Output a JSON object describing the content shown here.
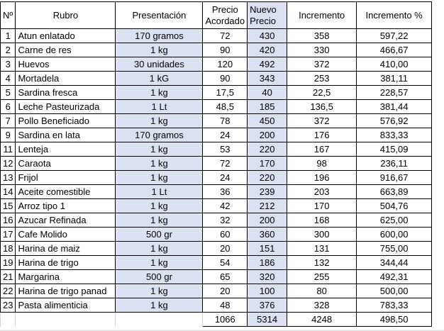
{
  "headers": {
    "num": "Nº",
    "rubro": "Rubro",
    "presentacion": "Presentación",
    "precio_acordado": "Precio Acordado",
    "nuevo_precio": "Nuevo Precio",
    "incremento": "Incremento",
    "incremento_pct": "Incremento %"
  },
  "rows": [
    {
      "num": "1",
      "rubro": "Atun enlatado",
      "presentacion": "170 gramos",
      "precio": "72",
      "nuevo": "430",
      "incremento": "358",
      "pct": "597,22"
    },
    {
      "num": "2",
      "rubro": "Carne de res",
      "presentacion": "1 kg",
      "precio": "90",
      "nuevo": "420",
      "incremento": "330",
      "pct": "466,67"
    },
    {
      "num": "3",
      "rubro": "Huevos",
      "presentacion": "30 unidades",
      "precio": "120",
      "nuevo": "492",
      "incremento": "372",
      "pct": "410,00"
    },
    {
      "num": "4",
      "rubro": "Mortadela",
      "presentacion": "1 kG",
      "precio": "90",
      "nuevo": "343",
      "incremento": "253",
      "pct": "381,11"
    },
    {
      "num": "5",
      "rubro": "Sardina fresca",
      "presentacion": "1 kg",
      "precio": "17,5",
      "nuevo": "40",
      "incremento": "22,5",
      "pct": "228,57"
    },
    {
      "num": "6",
      "rubro": "Leche Pasteurizada",
      "presentacion": "1 Lt",
      "precio": "48,5",
      "nuevo": "185",
      "incremento": "136,5",
      "pct": "381,44"
    },
    {
      "num": "7",
      "rubro": "Pollo Beneficiado",
      "presentacion": "1 kg",
      "precio": "78",
      "nuevo": "450",
      "incremento": "372",
      "pct": "576,92"
    },
    {
      "num": "9",
      "rubro": "Sardina en lata",
      "presentacion": "170 gramos",
      "precio": "24",
      "nuevo": "200",
      "incremento": "176",
      "pct": "833,33"
    },
    {
      "num": "11",
      "rubro": "Lenteja",
      "presentacion": "1 kg",
      "precio": "53",
      "nuevo": "220",
      "incremento": "167",
      "pct": "415,09"
    },
    {
      "num": "12",
      "rubro": "Caraota",
      "presentacion": "1 kg",
      "precio": "72",
      "nuevo": "170",
      "incremento": "98",
      "pct": "236,11"
    },
    {
      "num": "13",
      "rubro": "Frijol",
      "presentacion": "1 kg",
      "precio": "24",
      "nuevo": "220",
      "incremento": "196",
      "pct": "916,67"
    },
    {
      "num": "14",
      "rubro": "Aceite comestible",
      "presentacion": "1 Lt",
      "precio": "36",
      "nuevo": "239",
      "incremento": "203",
      "pct": "663,89"
    },
    {
      "num": "15",
      "rubro": "Arroz tipo 1",
      "presentacion": "1 kg",
      "precio": "42",
      "nuevo": "212",
      "incremento": "170",
      "pct": "504,76"
    },
    {
      "num": "16",
      "rubro": "Azucar Refinada",
      "presentacion": "1 kg",
      "precio": "32",
      "nuevo": "200",
      "incremento": "168",
      "pct": "625,00"
    },
    {
      "num": "17",
      "rubro": "Cafe Molido",
      "presentacion": "500 gr",
      "precio": "60",
      "nuevo": "360",
      "incremento": "300",
      "pct": "600,00"
    },
    {
      "num": "18",
      "rubro": "Harina de maiz",
      "presentacion": "1 kg",
      "precio": "20",
      "nuevo": "151",
      "incremento": "131",
      "pct": "755,00"
    },
    {
      "num": "19",
      "rubro": "Harina de trigo",
      "presentacion": "1 kg",
      "precio": "54",
      "nuevo": "186",
      "incremento": "132",
      "pct": "344,44"
    },
    {
      "num": "21",
      "rubro": "Margarina",
      "presentacion": "500 gr",
      "precio": "65",
      "nuevo": "320",
      "incremento": "255",
      "pct": "492,31"
    },
    {
      "num": "22",
      "rubro": "Harina de trigo panad",
      "presentacion": "1 kg",
      "precio": "20",
      "nuevo": "100",
      "incremento": "80",
      "pct": "500,00"
    },
    {
      "num": "23",
      "rubro": "Pasta alimenticia",
      "presentacion": "1 kg",
      "precio": "48",
      "nuevo": "376",
      "incremento": "328",
      "pct": "783,33"
    }
  ],
  "totals": {
    "precio": "1066",
    "nuevo": "5314",
    "incremento": "4248",
    "pct": "498,50"
  },
  "colors": {
    "highlight_fill": "#d9e1f2",
    "border": "#000000"
  }
}
